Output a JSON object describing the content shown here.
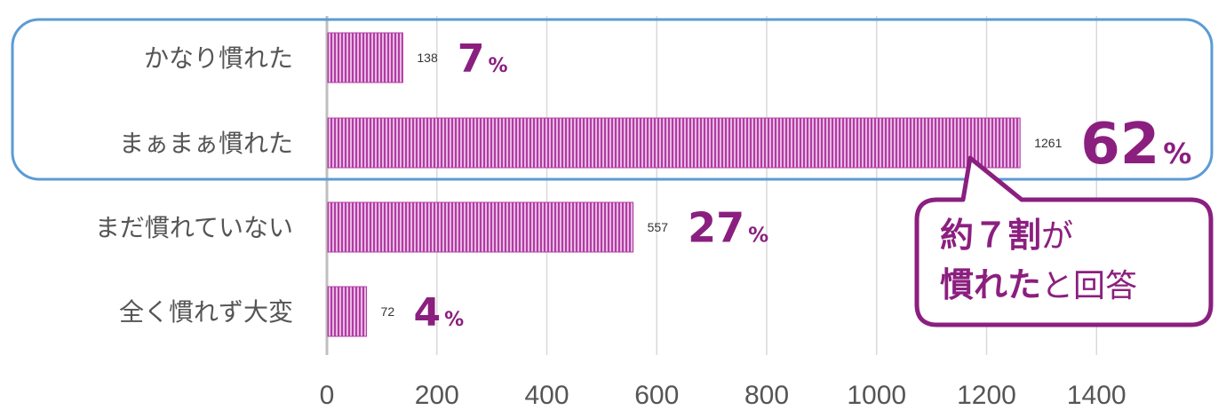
{
  "chart_data": {
    "type": "bar",
    "orientation": "horizontal",
    "categories": [
      "かなり慣れた",
      "まぁまぁ慣れた",
      "まだ慣れていない",
      "全く慣れず大変"
    ],
    "values": [
      138,
      1261,
      557,
      72
    ],
    "percent_labels": [
      {
        "num": "7",
        "unit": "%"
      },
      {
        "num": "62",
        "unit": "%"
      },
      {
        "num": "27",
        "unit": "%"
      },
      {
        "num": "4",
        "unit": "%"
      }
    ],
    "xlim": [
      0,
      1600
    ],
    "xticks": [
      0,
      200,
      400,
      600,
      800,
      1000,
      1200,
      1400
    ],
    "grid": true,
    "bar_color": "#C04DB0",
    "accent_color": "#8B1F7F",
    "highlight_box_color": "#5B9BD5",
    "callout": {
      "line1_bold": "約７割",
      "line1_rest": "が",
      "line2_bold": "慣れた",
      "line2_rest": "と回答"
    }
  }
}
